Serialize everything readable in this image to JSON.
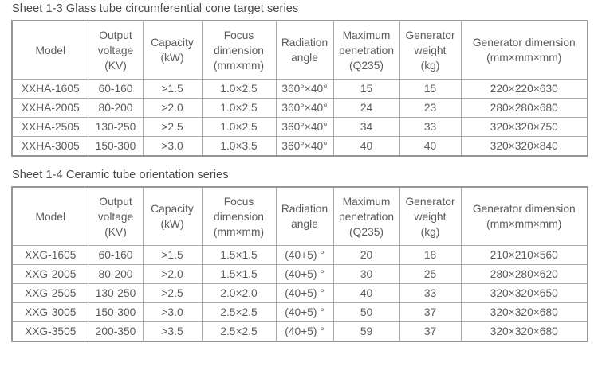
{
  "colors": {
    "text": "#5b5b5b",
    "title_text": "#4a4a4a",
    "table_border_outer": "#969696",
    "table_border_inner": "#a9a9a9",
    "background": "#ffffff"
  },
  "tables": [
    {
      "title": "Sheet 1-3 Glass tube circumferential cone target series",
      "columns": [
        "Model",
        "Output\nvoltage\n(KV)",
        "Capacity\n(kW)",
        "Focus\ndimension\n(mm×mm)",
        "Radiation\nangle",
        "Maximum\npenetration\n(Q235)",
        "Generator\nweight\n(kg)",
        "Generator dimension\n(mm×mm×mm)"
      ],
      "rows": [
        [
          "XXHA-1605",
          "60-160",
          ">1.5",
          "1.0×2.5",
          "360°×40°",
          "15",
          "15",
          "220×220×630"
        ],
        [
          "XXHA-2005",
          "80-200",
          ">2.0",
          "1.0×2.5",
          "360°×40°",
          "24",
          "23",
          "280×280×680"
        ],
        [
          "XXHA-2505",
          "130-250",
          ">2.5",
          "1.0×2.5",
          "360°×40°",
          "34",
          "33",
          "320×320×750"
        ],
        [
          "XXHA-3005",
          "150-300",
          ">3.0",
          "1.0×3.5",
          "360°×40°",
          "40",
          "40",
          "320×320×840"
        ]
      ]
    },
    {
      "title": "Sheet 1-4 Ceramic tube orientation series",
      "columns": [
        "Model",
        "Output\nvoltage\n(KV)",
        "Capacity\n(kW)",
        "Focus\ndimension\n(mm×mm)",
        "Radiation\nangle",
        "Maximum\npenetration\n(Q235)",
        "Generator\nweight\n(kg)",
        "Generator dimension\n(mm×mm×mm)"
      ],
      "rows": [
        [
          "XXG-1605",
          "60-160",
          ">1.5",
          "1.5×1.5",
          "(40+5) °",
          "20",
          "18",
          "210×210×560"
        ],
        [
          "XXG-2005",
          "80-200",
          ">2.0",
          "1.5×1.5",
          "(40+5) °",
          "30",
          "25",
          "280×280×620"
        ],
        [
          "XXG-2505",
          "130-250",
          ">2.5",
          "2.0×2.0",
          "(40+5) °",
          "40",
          "33",
          "320×320×650"
        ],
        [
          "XXG-3005",
          "150-300",
          ">3.0",
          "2.5×2.5",
          "(40+5) °",
          "50",
          "37",
          "320×320×680"
        ],
        [
          "XXG-3505",
          "200-350",
          ">3.5",
          "2.5×2.5",
          "(40+5) °",
          "59",
          "37",
          "320×320×680"
        ]
      ]
    }
  ]
}
